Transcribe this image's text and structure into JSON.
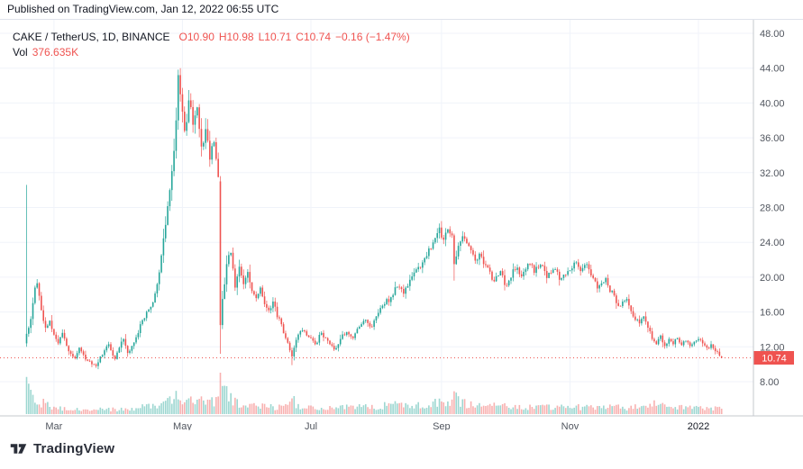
{
  "header": {
    "published": "Published on TradingView.com, Jan 12, 2022 06:55 UTC"
  },
  "legend": {
    "symbol": "CAKE / TetherUS, 1D, BINANCE",
    "o": "O10.90",
    "h": "H10.98",
    "l": "L10.71",
    "c": "C10.74",
    "chg": "−0.16 (−1.47%)",
    "vol_label": "Vol",
    "vol_value": "376.635K"
  },
  "footer": {
    "brand": "TradingView"
  },
  "colors": {
    "up": "#26a69a",
    "down": "#ef5350",
    "grid": "#f0f3fa",
    "axis_border": "#c5c8ce",
    "axis_text": "#50555e",
    "axis_text_emph": "#131722",
    "last_price_label_bg": "#ef5350",
    "last_price_label_text": "#ffffff"
  },
  "axes": {
    "y_ticks": [
      48,
      44,
      40,
      36,
      32,
      28,
      24,
      20,
      16,
      12,
      8
    ],
    "x_ticks": [
      {
        "label": "Mar",
        "day": 13
      },
      {
        "label": "May",
        "day": 74
      },
      {
        "label": "Jul",
        "day": 135
      },
      {
        "label": "Sep",
        "day": 197
      },
      {
        "label": "Nov",
        "day": 258
      },
      {
        "label": "2022",
        "day": 319,
        "emph": true
      }
    ],
    "last_price_label": "10.74"
  },
  "chart_data": {
    "type": "candlestick",
    "title": "CAKE / TetherUS, 1D, BINANCE",
    "symbol": "CAKE/USDT",
    "exchange": "BINANCE",
    "timeframe": "1D",
    "ylim": [
      8,
      48
    ],
    "price_axis": [
      8,
      48
    ],
    "x_tick_labels": [
      "Mar",
      "May",
      "Jul",
      "Sep",
      "Nov",
      "2022"
    ],
    "legend_position": "top-left",
    "grid": true,
    "days_total": 331,
    "last": {
      "open": 10.9,
      "high": 10.98,
      "low": 10.71,
      "close": 10.74,
      "change": -0.16,
      "change_pct": -1.47,
      "volume": "376.635K"
    },
    "anchors": [
      [
        0,
        13.5,
        2600
      ],
      [
        2,
        15.2,
        1500
      ],
      [
        4,
        18.8,
        1100
      ],
      [
        5,
        19.3,
        900
      ],
      [
        7,
        16.2,
        800
      ],
      [
        9,
        14.2,
        700
      ],
      [
        11,
        15.0,
        600
      ],
      [
        13,
        13.4,
        550
      ],
      [
        15,
        12.4,
        480
      ],
      [
        17,
        13.6,
        420
      ],
      [
        19,
        12.1,
        400
      ],
      [
        21,
        11.2,
        380
      ],
      [
        23,
        10.7,
        420
      ],
      [
        25,
        11.9,
        350
      ],
      [
        27,
        11.1,
        330
      ],
      [
        29,
        10.4,
        360
      ],
      [
        31,
        10.0,
        340
      ],
      [
        33,
        9.8,
        380
      ],
      [
        35,
        10.9,
        330
      ],
      [
        37,
        11.6,
        300
      ],
      [
        39,
        12.3,
        340
      ],
      [
        41,
        11.0,
        320
      ],
      [
        42,
        10.6,
        350
      ],
      [
        44,
        11.9,
        330
      ],
      [
        46,
        12.9,
        360
      ],
      [
        48,
        11.3,
        340
      ],
      [
        50,
        12.1,
        380
      ],
      [
        52,
        13.1,
        420
      ],
      [
        54,
        14.6,
        500
      ],
      [
        56,
        15.3,
        520
      ],
      [
        58,
        16.3,
        560
      ],
      [
        60,
        17.1,
        600
      ],
      [
        62,
        19.2,
        650
      ],
      [
        64,
        22.5,
        750
      ],
      [
        66,
        26.0,
        850
      ],
      [
        68,
        30.0,
        950
      ],
      [
        70,
        34.5,
        1050
      ],
      [
        71,
        38.0,
        1150
      ],
      [
        72,
        43.2,
        1400
      ],
      [
        73,
        41.0,
        1200
      ],
      [
        74,
        39.0,
        1100
      ],
      [
        75,
        36.8,
        1000
      ],
      [
        77,
        40.3,
        950
      ],
      [
        79,
        37.5,
        900
      ],
      [
        81,
        39.5,
        850
      ],
      [
        83,
        35.0,
        900
      ],
      [
        85,
        37.0,
        800
      ],
      [
        87,
        33.5,
        850
      ],
      [
        89,
        35.5,
        800
      ],
      [
        91,
        31.5,
        900
      ],
      [
        92,
        14.5,
        2900
      ],
      [
        93,
        17.5,
        1900
      ],
      [
        95,
        21.5,
        1400
      ],
      [
        97,
        22.8,
        1100
      ],
      [
        99,
        18.8,
        1000
      ],
      [
        101,
        21.2,
        800
      ],
      [
        103,
        19.2,
        700
      ],
      [
        105,
        20.6,
        650
      ],
      [
        107,
        18.4,
        600
      ],
      [
        109,
        17.6,
        580
      ],
      [
        111,
        18.8,
        550
      ],
      [
        113,
        16.9,
        520
      ],
      [
        115,
        16.2,
        500
      ],
      [
        117,
        17.2,
        480
      ],
      [
        119,
        15.4,
        460
      ],
      [
        121,
        14.6,
        480
      ],
      [
        123,
        13.0,
        520
      ],
      [
        125,
        11.6,
        700
      ],
      [
        126,
        10.9,
        1100
      ],
      [
        128,
        12.8,
        700
      ],
      [
        131,
        13.9,
        500
      ],
      [
        134,
        13.1,
        450
      ],
      [
        137,
        12.3,
        430
      ],
      [
        140,
        13.6,
        460
      ],
      [
        143,
        12.7,
        420
      ],
      [
        146,
        11.7,
        450
      ],
      [
        149,
        12.9,
        430
      ],
      [
        152,
        13.7,
        460
      ],
      [
        155,
        13.0,
        420
      ],
      [
        158,
        14.3,
        480
      ],
      [
        161,
        15.1,
        520
      ],
      [
        164,
        14.3,
        480
      ],
      [
        167,
        15.9,
        540
      ],
      [
        170,
        16.9,
        580
      ],
      [
        173,
        17.7,
        600
      ],
      [
        176,
        18.9,
        640
      ],
      [
        179,
        18.1,
        580
      ],
      [
        182,
        19.7,
        620
      ],
      [
        185,
        20.9,
        680
      ],
      [
        188,
        21.7,
        700
      ],
      [
        191,
        23.3,
        760
      ],
      [
        194,
        24.5,
        800
      ],
      [
        196,
        25.7,
        850
      ],
      [
        198,
        24.3,
        780
      ],
      [
        200,
        25.5,
        820
      ],
      [
        202,
        24.8,
        760
      ],
      [
        203,
        21.5,
        1600
      ],
      [
        205,
        23.6,
        1000
      ],
      [
        207,
        24.7,
        850
      ],
      [
        209,
        23.9,
        700
      ],
      [
        211,
        23.1,
        650
      ],
      [
        213,
        21.9,
        620
      ],
      [
        215,
        22.7,
        600
      ],
      [
        217,
        21.5,
        580
      ],
      [
        219,
        21.1,
        560
      ],
      [
        221,
        19.7,
        600
      ],
      [
        223,
        20.1,
        540
      ],
      [
        225,
        20.7,
        520
      ],
      [
        227,
        19.1,
        560
      ],
      [
        229,
        19.6,
        500
      ],
      [
        231,
        20.9,
        520
      ],
      [
        233,
        21.1,
        500
      ],
      [
        235,
        20.1,
        480
      ],
      [
        237,
        20.9,
        460
      ],
      [
        239,
        21.5,
        480
      ],
      [
        241,
        20.5,
        460
      ],
      [
        243,
        21.1,
        440
      ],
      [
        245,
        21.3,
        460
      ],
      [
        247,
        19.9,
        480
      ],
      [
        249,
        20.5,
        440
      ],
      [
        251,
        20.9,
        460
      ],
      [
        253,
        19.7,
        480
      ],
      [
        255,
        20.3,
        460
      ],
      [
        257,
        20.7,
        480
      ],
      [
        259,
        21.0,
        500
      ],
      [
        261,
        21.7,
        520
      ],
      [
        263,
        20.7,
        480
      ],
      [
        265,
        21.4,
        460
      ],
      [
        267,
        20.9,
        440
      ],
      [
        269,
        19.9,
        460
      ],
      [
        271,
        18.7,
        480
      ],
      [
        273,
        19.3,
        460
      ],
      [
        275,
        19.9,
        440
      ],
      [
        277,
        18.3,
        480
      ],
      [
        279,
        17.9,
        460
      ],
      [
        281,
        16.7,
        500
      ],
      [
        283,
        17.2,
        460
      ],
      [
        285,
        17.5,
        440
      ],
      [
        287,
        16.1,
        480
      ],
      [
        289,
        15.1,
        520
      ],
      [
        291,
        14.7,
        540
      ],
      [
        293,
        15.5,
        500
      ],
      [
        295,
        14.2,
        560
      ],
      [
        297,
        12.9,
        700
      ],
      [
        299,
        12.3,
        640
      ],
      [
        301,
        13.3,
        560
      ],
      [
        303,
        12.1,
        520
      ],
      [
        305,
        12.9,
        480
      ],
      [
        307,
        12.3,
        460
      ],
      [
        309,
        13.0,
        440
      ],
      [
        311,
        12.2,
        460
      ],
      [
        313,
        12.7,
        420
      ],
      [
        315,
        12.1,
        440
      ],
      [
        317,
        12.6,
        400
      ],
      [
        319,
        12.9,
        420
      ],
      [
        321,
        12.4,
        380
      ],
      [
        323,
        11.9,
        400
      ],
      [
        325,
        12.3,
        380
      ],
      [
        327,
        11.5,
        400
      ],
      [
        329,
        11.0,
        380
      ],
      [
        330,
        10.74,
        377
      ]
    ],
    "overrides": [
      {
        "day": 0,
        "o": 12.4,
        "h": 30.6,
        "l": 12.0,
        "c": 13.5
      },
      {
        "day": 92,
        "o": 31.0,
        "h": 31.6,
        "l": 11.2,
        "c": 14.5
      },
      {
        "day": 126,
        "o": 11.6,
        "h": 11.9,
        "l": 9.9,
        "c": 10.9
      },
      {
        "day": 203,
        "o": 24.8,
        "h": 25.0,
        "l": 19.6,
        "c": 21.5
      },
      {
        "day": 330,
        "o": 10.9,
        "h": 10.98,
        "l": 10.71,
        "c": 10.74
      }
    ]
  }
}
